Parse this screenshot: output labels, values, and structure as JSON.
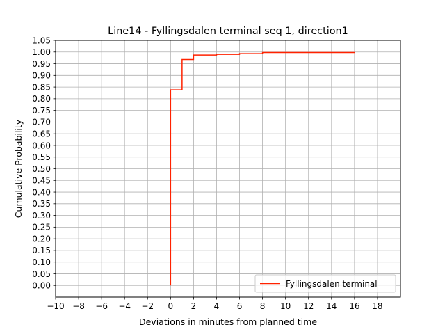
{
  "chart_data": {
    "type": "line",
    "step": true,
    "title": "Line14 - Fyllingsdalen terminal seq 1, direction1",
    "xlabel": "Deviations in minutes from planned time",
    "ylabel": "Cumulative Probability",
    "xlim": [
      -10,
      20
    ],
    "ylim": [
      -0.05,
      1.05
    ],
    "x_ticks": [
      -10,
      -8,
      -6,
      -4,
      -2,
      0,
      2,
      4,
      6,
      8,
      10,
      12,
      14,
      16,
      18
    ],
    "x_tick_labels": [
      "−10",
      "−8",
      "−6",
      "−4",
      "−2",
      "0",
      "2",
      "4",
      "6",
      "8",
      "10",
      "12",
      "14",
      "16",
      "18"
    ],
    "y_ticks": [
      0,
      0.05,
      0.1,
      0.15,
      0.2,
      0.25,
      0.3,
      0.35,
      0.4,
      0.45,
      0.5,
      0.55,
      0.6,
      0.65,
      0.7,
      0.75,
      0.8,
      0.85,
      0.9,
      0.95,
      1.0,
      1.05
    ],
    "y_tick_labels": [
      "0.00",
      "0.05",
      "0.10",
      "0.15",
      "0.20",
      "0.25",
      "0.30",
      "0.35",
      "0.40",
      "0.45",
      "0.50",
      "0.55",
      "0.60",
      "0.65",
      "0.70",
      "0.75",
      "0.80",
      "0.85",
      "0.90",
      "0.95",
      "1.00",
      "1.05"
    ],
    "grid": true,
    "legend_position": "lower-right",
    "series": [
      {
        "name": "Fyllingsdalen terminal",
        "color": "#ff2200",
        "x": [
          0,
          0,
          1,
          1,
          2,
          2,
          4,
          6,
          8,
          16
        ],
        "y": [
          0.0,
          0.838,
          0.838,
          0.968,
          0.968,
          0.987,
          0.99,
          0.993,
          0.998,
          1.0
        ]
      }
    ]
  }
}
